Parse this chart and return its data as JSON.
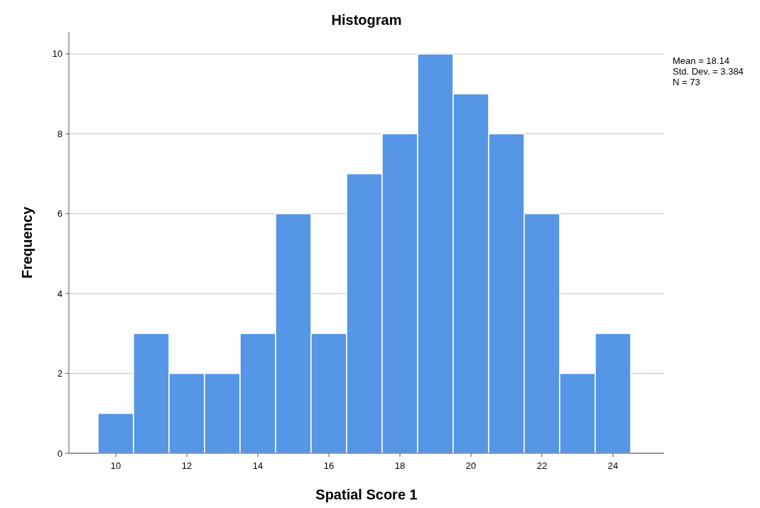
{
  "chart_data": {
    "type": "histogram",
    "title": "Histogram",
    "xlabel": "Spatial Score 1",
    "ylabel": "Frequency",
    "bins": [
      9.5,
      10.5,
      11.5,
      12.5,
      13.5,
      14.5,
      15.5,
      16.5,
      17.5,
      18.5,
      19.5,
      20.5,
      21.5,
      22.5,
      23.5,
      24.5
    ],
    "values": [
      1,
      3,
      2,
      2,
      3,
      6,
      3,
      7,
      8,
      10,
      9,
      8,
      6,
      2,
      3
    ],
    "color": "#5596e6",
    "xlim": [
      8.68,
      25.44
    ],
    "xticks": [
      10,
      12,
      14,
      16,
      18,
      20,
      22,
      24
    ],
    "ylim": [
      0,
      10.55
    ],
    "yticks": [
      0,
      2,
      4,
      6,
      8,
      10
    ],
    "grid": "y",
    "annotations": [
      "Mean = 18.14",
      "Std. Dev. = 3.384",
      "N = 73"
    ]
  }
}
